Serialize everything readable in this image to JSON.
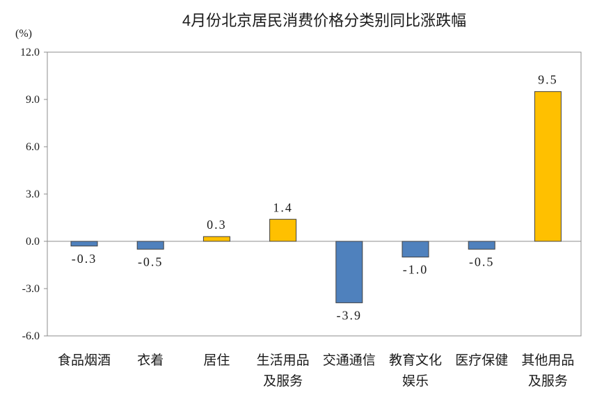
{
  "chart_data": {
    "type": "bar",
    "title": "4月份北京居民消费价格分类别同比涨跌幅",
    "unit_label": "(%)",
    "categories": [
      "食品烟酒",
      "衣着",
      "居住",
      "生活用品及服务",
      "交通通信",
      "教育文化娱乐",
      "医疗保健",
      "其他用品及服务"
    ],
    "values": [
      -0.3,
      -0.5,
      0.3,
      1.4,
      -3.9,
      -1.0,
      -0.5,
      9.5
    ],
    "ylim": [
      -6,
      12
    ],
    "ytick_values": [
      12,
      9,
      6,
      3,
      0,
      -3,
      -6
    ],
    "ytick_labels": [
      "12.0",
      "9.0",
      "6.0",
      "3.0",
      "0.0",
      "-3.0",
      "-6.0"
    ],
    "grid": false,
    "colors": {
      "positive": "#FFC000",
      "negative": "#4F81BD",
      "bar_outline": "#404040",
      "axis": "#8c8c8c"
    }
  }
}
